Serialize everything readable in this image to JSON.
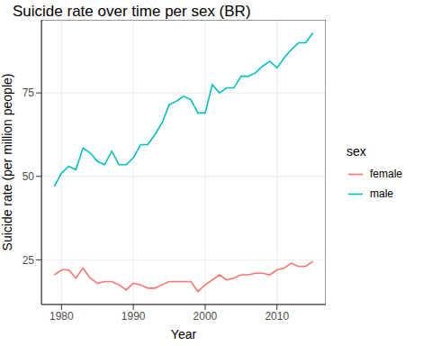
{
  "chart_data": {
    "type": "line",
    "title": "Suicide rate over time per sex (BR)",
    "x_label": "Year",
    "y_label": "Suicide rate (per million people)",
    "legend_title": "sex",
    "legend": "right",
    "grid": true,
    "x": [
      1979,
      1980,
      1981,
      1982,
      1983,
      1984,
      1985,
      1986,
      1987,
      1988,
      1989,
      1990,
      1991,
      1992,
      1993,
      1994,
      1995,
      1996,
      1997,
      1998,
      1999,
      2000,
      2001,
      2002,
      2003,
      2004,
      2005,
      2006,
      2007,
      2008,
      2009,
      2010,
      2011,
      2012,
      2013,
      2014,
      2015
    ],
    "xlim": [
      1977.2,
      2016.8
    ],
    "xticks": [
      1980,
      1990,
      2000,
      2010
    ],
    "ylim": [
      11.6,
      96.9
    ],
    "yticks": [
      25,
      50,
      75
    ],
    "series": [
      {
        "name": "female",
        "color": "#F8766D",
        "values": [
          20.5,
          22,
          22,
          19.5,
          22.5,
          19.5,
          18,
          18.5,
          18.5,
          17.5,
          16,
          18,
          17.5,
          16.5,
          16.5,
          17.5,
          18.5,
          18.5,
          18.5,
          18.5,
          15.5,
          17.5,
          19,
          20.5,
          19,
          19.5,
          20.5,
          20.5,
          21,
          21,
          20.5,
          22,
          22.5,
          24,
          23,
          23,
          24.5
        ]
      },
      {
        "name": "male",
        "color": "#00BFC4",
        "values": [
          47,
          51,
          53,
          52,
          58.5,
          57,
          54.5,
          53.5,
          57.5,
          53.5,
          53.5,
          55.5,
          59.5,
          59.5,
          62.5,
          66,
          71.5,
          72.5,
          74,
          73,
          69,
          69,
          77.5,
          75,
          76.5,
          76.5,
          80,
          80,
          81,
          83,
          84.5,
          82.5,
          85.5,
          88,
          90,
          90,
          93
        ]
      }
    ]
  }
}
